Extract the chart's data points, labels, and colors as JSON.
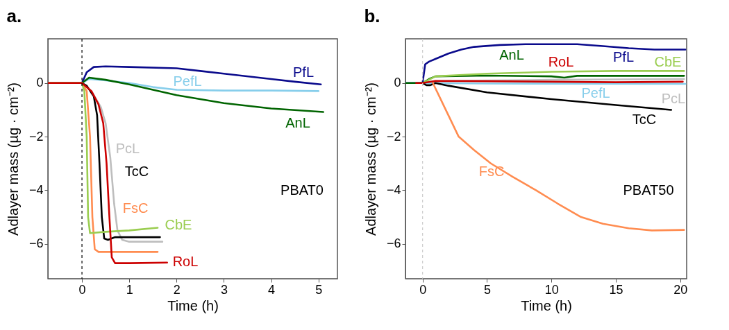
{
  "chart_data": [
    {
      "type": "line",
      "title": "a.",
      "xlabel": "Time (h)",
      "ylabel": "Adlayer mass (µg · cm⁻²)",
      "xlim": [
        -0.72,
        5.4
      ],
      "ylim": [
        -7.3,
        1.65
      ],
      "xticks": [
        0,
        1,
        2,
        3,
        4,
        5
      ],
      "yticks": [
        -6,
        -4,
        -2,
        0
      ],
      "ref_lines": [
        {
          "axis": "x",
          "value": 0,
          "color": "#000000",
          "line_style": "dashed"
        }
      ],
      "series": [
        {
          "color": "#0a0a8c",
          "x": [
            -0.72,
            0,
            0.1,
            0.25,
            0.5,
            1,
            2,
            2.5,
            3,
            4,
            4.5,
            5.05
          ],
          "values": [
            0,
            0,
            0.4,
            0.6,
            0.62,
            0.6,
            0.55,
            0.45,
            0.35,
            0.15,
            0.05,
            -0.05
          ]
        },
        {
          "color": "#87ceeb",
          "x": [
            -0.72,
            0,
            0.15,
            0.5,
            1,
            1.5,
            2,
            3,
            4,
            5
          ],
          "values": [
            0,
            0,
            0.15,
            0.1,
            0,
            -0.15,
            -0.25,
            -0.28,
            -0.28,
            -0.3
          ]
        },
        {
          "color": "#006400",
          "x": [
            -0.72,
            0,
            0.15,
            0.5,
            1,
            1.5,
            2,
            3,
            4,
            5.1
          ],
          "values": [
            0,
            0,
            0.2,
            0.12,
            -0.05,
            -0.25,
            -0.45,
            -0.75,
            -0.95,
            -1.08
          ]
        },
        {
          "color": "#bebebe",
          "x": [
            -0.72,
            0,
            0.2,
            0.4,
            0.5,
            0.6,
            0.68,
            0.75,
            0.85,
            1,
            1.7
          ],
          "values": [
            0,
            0,
            -0.3,
            -0.9,
            -1.5,
            -2.8,
            -4.5,
            -5.5,
            -5.85,
            -5.92,
            -5.92
          ]
        },
        {
          "color": "#000000",
          "x": [
            -0.72,
            0,
            0.1,
            0.25,
            0.32,
            0.37,
            0.42,
            0.47,
            0.55,
            0.7,
            1.65
          ],
          "values": [
            0,
            0,
            -0.1,
            -0.5,
            -1.2,
            -3,
            -5,
            -5.8,
            -5.85,
            -5.75,
            -5.75
          ]
        },
        {
          "color": "#ff8c50",
          "x": [
            -0.72,
            0,
            0.1,
            0.17,
            0.22,
            0.27,
            0.35,
            1,
            1.6
          ],
          "values": [
            0,
            0,
            -0.3,
            -2,
            -5,
            -6.2,
            -6.3,
            -6.3,
            -6.3
          ]
        },
        {
          "color": "#9acd50",
          "x": [
            -0.72,
            0,
            0.05,
            0.1,
            0.13,
            0.17,
            0.5,
            1,
            1.6
          ],
          "values": [
            0,
            0,
            -0.3,
            -2,
            -5,
            -5.6,
            -5.55,
            -5.5,
            -5.4
          ]
        },
        {
          "color": "#cc0000",
          "x": [
            -0.72,
            0,
            0.2,
            0.35,
            0.45,
            0.52,
            0.58,
            0.63,
            0.7,
            1,
            1.8
          ],
          "values": [
            0,
            0,
            -0.3,
            -0.8,
            -1.5,
            -3,
            -5,
            -6.5,
            -6.72,
            -6.72,
            -6.7
          ]
        }
      ],
      "annotations": [
        "PfL",
        "PefL",
        "AnL",
        "PcL",
        "TcC",
        "FsC",
        "CbE",
        "RoL",
        "PBAT0"
      ]
    },
    {
      "type": "line",
      "title": "b.",
      "xlabel": "Time (h)",
      "ylabel": "Adlayer mass (µg · cm⁻²)",
      "xlim": [
        -1.33,
        20.5
      ],
      "ylim": [
        -7.3,
        1.65
      ],
      "xticks": [
        0,
        5,
        10,
        15,
        20
      ],
      "yticks": [
        -6,
        -4,
        -2,
        0
      ],
      "ref_lines": [
        {
          "axis": "x",
          "value": 0,
          "color": "#cccccc",
          "line_style": "dashed"
        }
      ],
      "series": [
        {
          "color": "#0a0a8c",
          "x": [
            -1.33,
            0,
            0.2,
            0.5,
            1,
            2,
            3,
            4,
            6,
            8,
            10,
            12,
            14,
            16,
            18,
            20.4
          ],
          "values": [
            0,
            0,
            0.7,
            0.8,
            0.9,
            1.1,
            1.25,
            1.35,
            1.42,
            1.45,
            1.45,
            1.45,
            1.38,
            1.3,
            1.25,
            1.25
          ]
        },
        {
          "color": "#87ceeb",
          "x": [
            -1.33,
            0,
            5,
            20.4
          ],
          "values": [
            0,
            0,
            -0.02,
            -0.03
          ]
        },
        {
          "color": "#006400",
          "x": [
            -1.33,
            0,
            0.5,
            1,
            5,
            10,
            11,
            12,
            20.3
          ],
          "values": [
            0,
            0,
            0.15,
            0.25,
            0.28,
            0.25,
            0.2,
            0.27,
            0.27
          ]
        },
        {
          "color": "#bebebe",
          "x": [
            0,
            1,
            10,
            20.3
          ],
          "values": [
            0,
            0.08,
            0.12,
            0.15
          ]
        },
        {
          "color": "#000000",
          "x": [
            0,
            0.3,
            0.6,
            1,
            2,
            5,
            10,
            15,
            19.3
          ],
          "values": [
            0,
            -0.08,
            -0.08,
            0,
            -0.1,
            -0.35,
            -0.6,
            -0.82,
            -1.0
          ]
        },
        {
          "color": "#ff8c50",
          "x": [
            0.8,
            1.5,
            2,
            2.8,
            4,
            5.3,
            7,
            8.8,
            10.5,
            12.3,
            14,
            16,
            17.8,
            20.3
          ],
          "values": [
            0,
            -0.7,
            -1.2,
            -2.0,
            -2.5,
            -3.0,
            -3.5,
            -4.0,
            -4.5,
            -5.0,
            -5.25,
            -5.42,
            -5.5,
            -5.48
          ]
        },
        {
          "color": "#9acd50",
          "x": [
            0,
            1,
            5,
            10,
            15,
            20.3
          ],
          "values": [
            0,
            0.25,
            0.35,
            0.42,
            0.45,
            0.45
          ]
        },
        {
          "color": "#cc0000",
          "x": [
            -0.5,
            0,
            1,
            5,
            10,
            15,
            20.2
          ],
          "values": [
            0,
            0,
            0.08,
            0.07,
            0.05,
            0.03,
            0.05
          ]
        }
      ],
      "annotations": [
        "PfL",
        "PefL",
        "AnL",
        "PcL",
        "TcC",
        "FsC",
        "CbE",
        "RoL",
        "PBAT50"
      ]
    }
  ]
}
